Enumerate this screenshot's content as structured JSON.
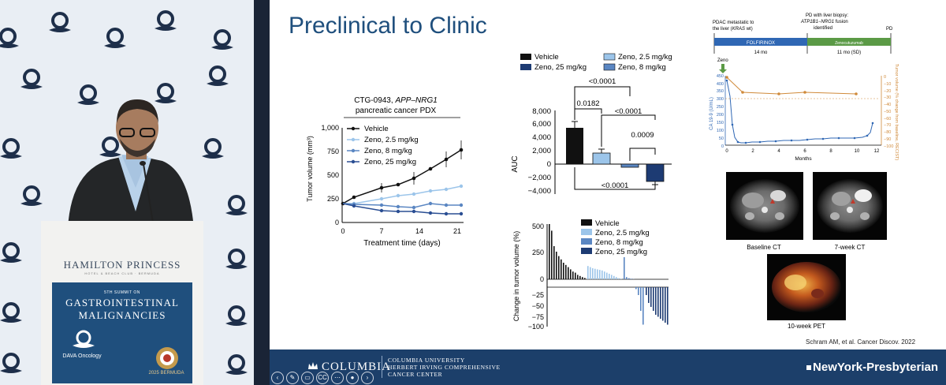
{
  "slide": {
    "title": "Preclinical to Clinic",
    "citation": "Schram AM, et al. Cancer Discov. 2022"
  },
  "tumor_chart": {
    "title_line1_prefix": "CTG-0943, ",
    "title_line1_italic": "APP–NRG1",
    "title_line2": "pancreatic cancer PDX",
    "ylabel": "Tumor volume (mm³)",
    "xlabel": "Treatment time (days)",
    "yticks": [
      "1,000",
      "750",
      "500",
      "250",
      "0"
    ],
    "xticks": [
      "0",
      "7",
      "14",
      "21"
    ],
    "legend": [
      "Vehicle",
      "Zeno, 2.5 mg/kg",
      "Zeno, 8 mg/kg",
      "Zeno, 25 mg/kg"
    ]
  },
  "auc_chart": {
    "ylabel": "AUC",
    "yticks": [
      "8,000",
      "6,000",
      "4,000",
      "2,000",
      "0",
      "−2,000",
      "−4,000"
    ],
    "legend": [
      "Vehicle",
      "Zeno, 2.5 mg/kg",
      "Zeno, 25 mg/kg",
      "Zeno, 8 mg/kg"
    ],
    "pvalues": [
      "<0.0001",
      "0.0182",
      "<0.0001",
      "0.0009",
      "<0.0001"
    ]
  },
  "waterfall_chart": {
    "ylabel": "Change in tumor volume (%)",
    "yticks": [
      "500",
      "250",
      "0",
      "−25",
      "−50",
      "−75",
      "−100"
    ],
    "legend": [
      "Vehicle",
      "Zeno, 2.5 mg/kg",
      "Zeno, 8 mg/kg",
      "Zeno, 25 mg/kg"
    ]
  },
  "clinical_chart": {
    "pd_biopsy_line1": "PD with liver biopsy:",
    "pd_biopsy_gene_a": "ATP1B1",
    "pd_biopsy_sep": "−",
    "pd_biopsy_gene_b": "NRG1",
    "pd_biopsy_line2_suffix": " fusion",
    "pd_biopsy_line3": "identified",
    "pdac_line1": "PDAC metastatic to",
    "pdac_line2_prefix": "the liver (",
    "pdac_line2_italic": "KRAS",
    "pdac_line2_suffix": " wt)",
    "pd_label": "PD",
    "folfirinox": "FOLFIRINOX",
    "zeno_bar": "Zenocutuzumab",
    "dur1": "14 mo",
    "dur2": "11 mo (SD)",
    "zeno_marker": "Zeno",
    "left_ylabel": "CA 19-9 (U/mL)",
    "right_ylabel": "Tumor volume (% change from baseline, RECIST)",
    "left_yticks": [
      "450",
      "400",
      "350",
      "300",
      "250",
      "200",
      "150",
      "100",
      "50",
      "0"
    ],
    "right_yticks": [
      "0",
      "−10",
      "−20",
      "−30",
      "−40",
      "−50",
      "−60",
      "−70",
      "−80",
      "−90",
      "−100"
    ],
    "xticks": [
      "0",
      "2",
      "4",
      "6",
      "8",
      "10",
      "12"
    ],
    "xlabel": "Months"
  },
  "scans": {
    "baseline_label": "Baseline CT",
    "week7_label": "7-week CT",
    "pet_label": "10-week PET"
  },
  "podium": {
    "brand": "HAMILTON PRINCESS",
    "brand_sub": "HOTEL & BEACH CLUB · BERMUDA",
    "summit_line": "5TH SUMMIT ON",
    "summit_title1": "GASTROINTESTINAL",
    "summit_title2": "MALIGNANCIES",
    "dava": "DAVA Oncology",
    "bermuda": "2025 BERMUDA"
  },
  "footer": {
    "columbia": "COLUMBIA",
    "columbia_sub1": "COLUMBIA UNIVERSITY",
    "columbia_sub2": "HERBERT IRVING COMPREHENSIVE",
    "columbia_sub3": "CANCER CENTER",
    "nyp": "NewYork-Presbyterian"
  },
  "controls": {
    "cc": "CC"
  }
}
